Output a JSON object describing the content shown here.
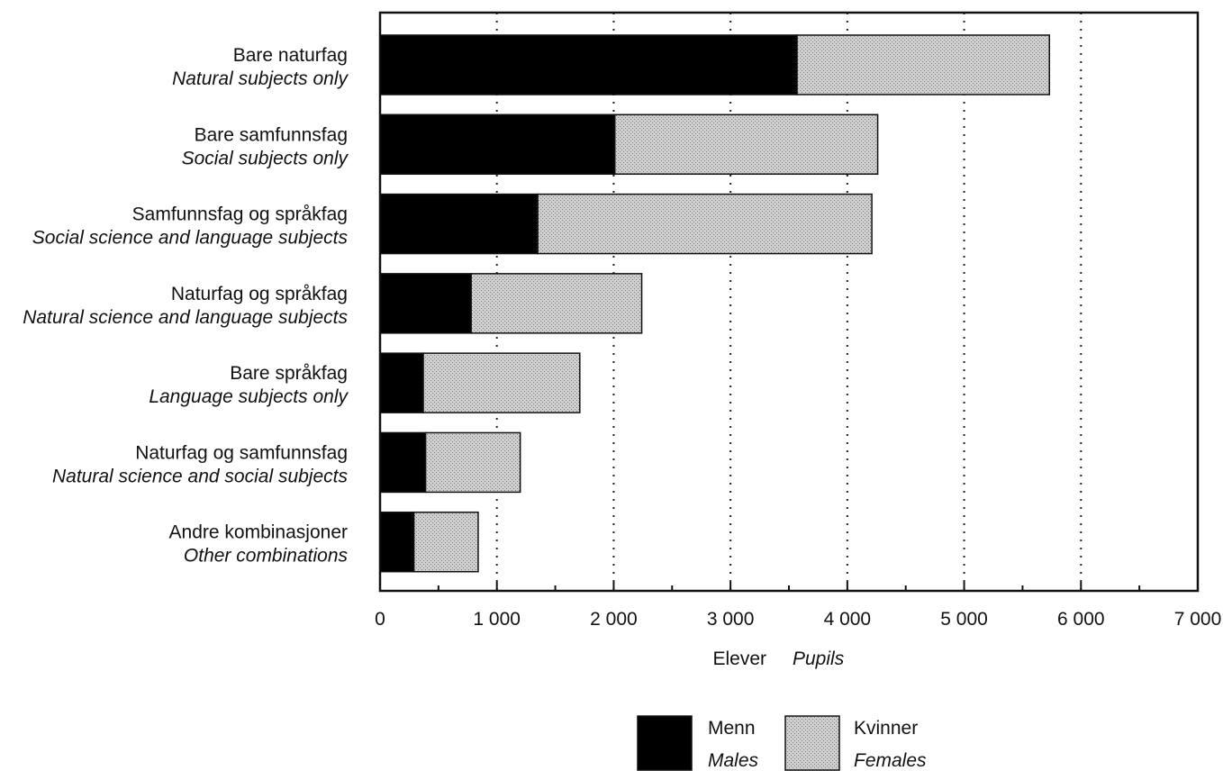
{
  "chart_data": {
    "type": "bar",
    "orientation": "horizontal",
    "stacked": true,
    "categories": [
      {
        "label": "Bare naturfag",
        "label_en": "Natural subjects only"
      },
      {
        "label": "Bare samfunnsfag",
        "label_en": "Social subjects only"
      },
      {
        "label": "Samfunnsfag og språkfag",
        "label_en": "Social science and language subjects"
      },
      {
        "label": "Naturfag og språkfag",
        "label_en": "Natural science and language subjects"
      },
      {
        "label": "Bare språkfag",
        "label_en": "Language subjects only"
      },
      {
        "label": "Naturfag og samfunnsfag",
        "label_en": "Natural science and social subjects"
      },
      {
        "label": "Andre kombinasjoner",
        "label_en": "Other combinations"
      }
    ],
    "series": [
      {
        "name": "Menn",
        "name_en": "Males",
        "color": "#000000",
        "values": [
          3570,
          2010,
          1350,
          780,
          370,
          390,
          290
        ]
      },
      {
        "name": "Kvinner",
        "name_en": "Females",
        "color": "#c4c4c4",
        "values": [
          2160,
          2250,
          2860,
          1460,
          1340,
          810,
          550
        ]
      }
    ],
    "xlabel": "Elever",
    "xlabel_en": "Pupils",
    "xlim": [
      0,
      7000
    ],
    "xticks": [
      0,
      1000,
      2000,
      3000,
      4000,
      5000,
      6000,
      7000
    ],
    "xtick_labels": [
      "0",
      "1 000",
      "2 000",
      "3 000",
      "4 000",
      "5 000",
      "6 000",
      "7 000"
    ],
    "grid": "vertical dotted",
    "legend_position": "bottom-center"
  }
}
